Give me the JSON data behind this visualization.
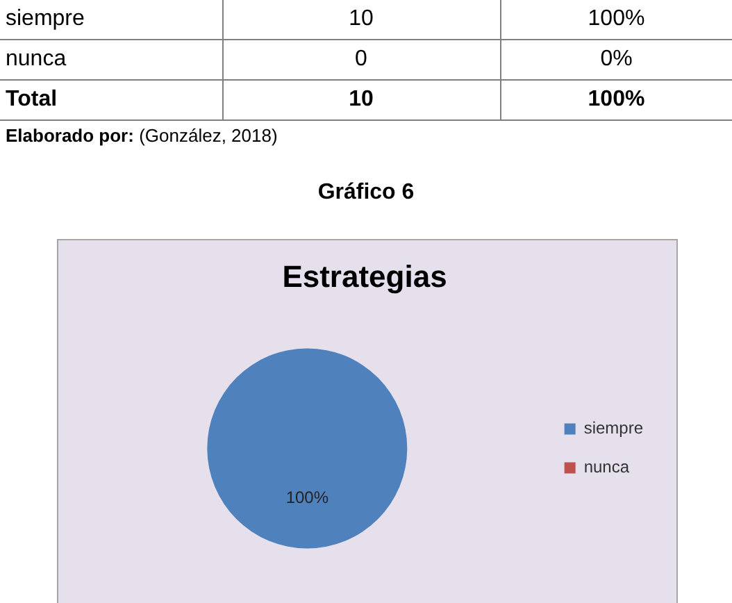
{
  "chart_data": [
    {
      "type": "other",
      "annotations": [
        "siempre",
        "10",
        "100%",
        "nunca",
        "0",
        "0%",
        "Total",
        "10",
        "100%",
        "Elaborado por:",
        "(González, 2018)"
      ]
    },
    {
      "type": "pie",
      "title": "Estrategias",
      "annotations": [
        "Gráfico 6"
      ],
      "categories": [
        "siempre",
        "nunca"
      ],
      "values": [
        100,
        0
      ],
      "colors": [
        "#4f81bd",
        "#c0504d"
      ],
      "value_labels": [
        "100%",
        null
      ],
      "legend": "right"
    }
  ]
}
